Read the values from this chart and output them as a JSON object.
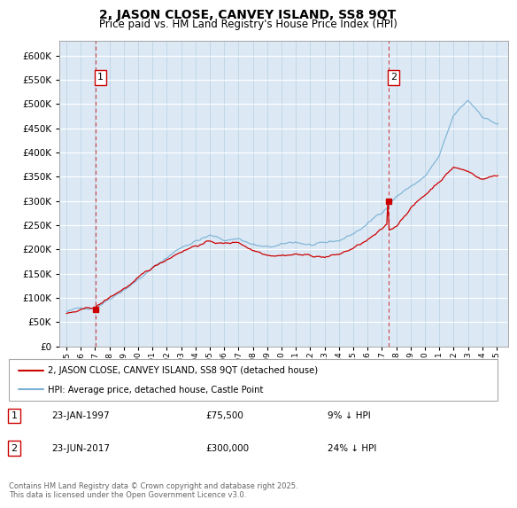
{
  "title": "2, JASON CLOSE, CANVEY ISLAND, SS8 9QT",
  "subtitle": "Price paid vs. HM Land Registry's House Price Index (HPI)",
  "legend_line1": "2, JASON CLOSE, CANVEY ISLAND, SS8 9QT (detached house)",
  "legend_line2": "HPI: Average price, detached house, Castle Point",
  "footnote": "Contains HM Land Registry data © Crown copyright and database right 2025.\nThis data is licensed under the Open Government Licence v3.0.",
  "transaction1_date": "23-JAN-1997",
  "transaction1_price": "£75,500",
  "transaction1_hpi": "9% ↓ HPI",
  "transaction2_date": "23-JUN-2017",
  "transaction2_price": "£300,000",
  "transaction2_hpi": "24% ↓ HPI",
  "red_color": "#cc0000",
  "blue_color": "#7ab0d4",
  "dashed_color": "#cc4444",
  "bg_color": "#dce9f5",
  "grid_color": "#b8cfe0",
  "t1_x": 1997.06,
  "t1_y": 75500,
  "t2_x": 2017.48,
  "t2_y": 300000,
  "xlim": [
    1994.5,
    2025.8
  ],
  "ylim": [
    0,
    630000
  ],
  "ytick_max": 600000,
  "ytick_step": 50000
}
